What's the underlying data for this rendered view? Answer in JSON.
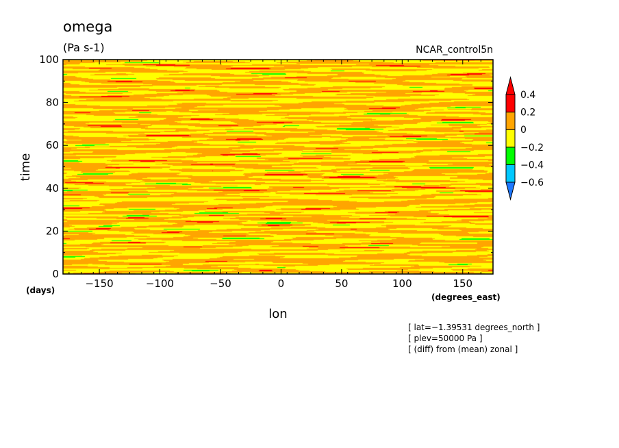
{
  "chart_data": {
    "type": "heatmap",
    "title": "omega",
    "units": "(Pa s-1)",
    "dataset": "NCAR_control5n",
    "xlabel": "lon",
    "x_units": "(degrees_east)",
    "ylabel": "time",
    "y_units": "(days)",
    "xlim": [
      -180,
      175
    ],
    "ylim": [
      0,
      100
    ],
    "x_ticks": [
      -150,
      -100,
      -50,
      0,
      50,
      100,
      150
    ],
    "y_ticks": [
      0,
      20,
      40,
      60,
      80,
      100
    ],
    "x_tick_labels": [
      "−150",
      "−100",
      "−50",
      "0",
      "50",
      "100",
      "150"
    ],
    "y_tick_labels": [
      "0",
      "20",
      "40",
      "60",
      "80",
      "100"
    ],
    "colorbar": {
      "levels": [
        -0.6,
        -0.4,
        -0.2,
        0,
        0.2,
        0.4
      ],
      "labels": [
        "−0.6",
        "−0.4",
        "−0.2",
        "0",
        "0.2",
        "0.4"
      ],
      "colors": [
        "#1e78ff",
        "#00c8ff",
        "#00ff00",
        "#ffff00",
        "#ffa500",
        "#ff0000"
      ],
      "extend": "both"
    },
    "annotations": [
      "[ lat=−1.39531 degrees_north ]",
      "[ plev=50000 Pa ]",
      "[ (diff) from (mean) zonal ]"
    ]
  }
}
